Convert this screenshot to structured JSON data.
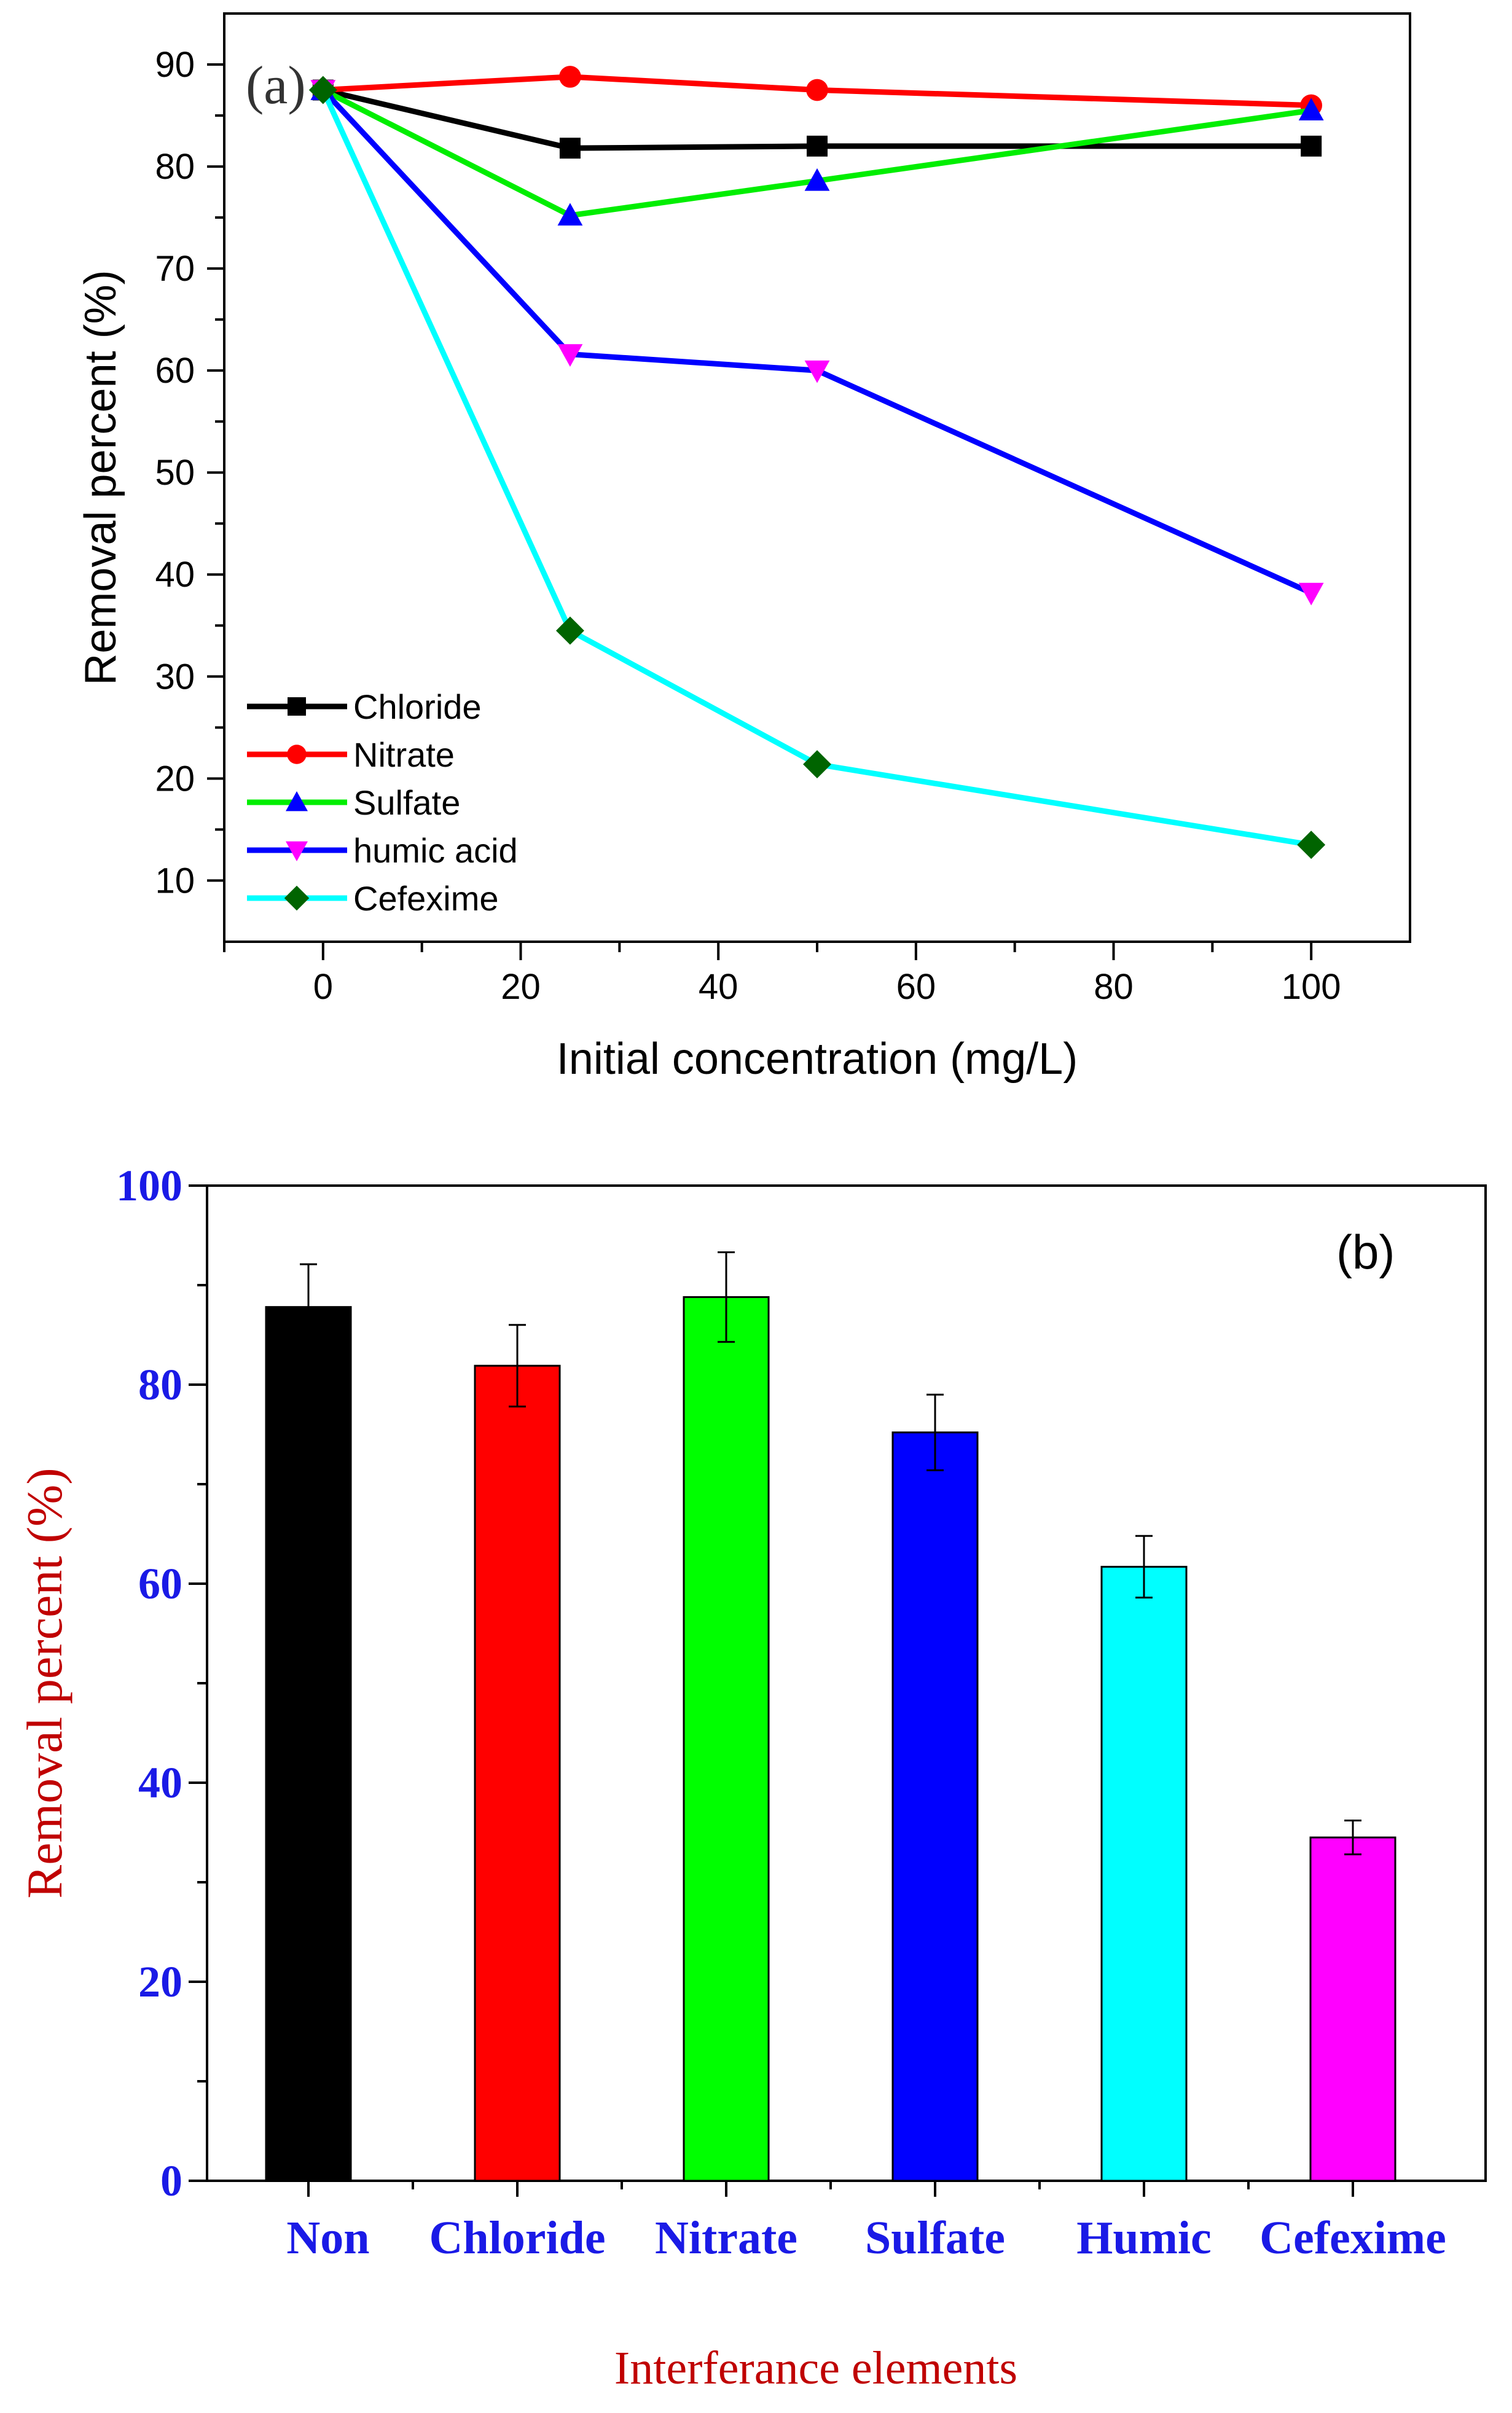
{
  "chart_data": [
    {
      "type": "line",
      "panel_label": "(a)",
      "xlabel": "Initial concentration (mg/L)",
      "ylabel": "Removal percent (%)",
      "xlim": [
        -10,
        110
      ],
      "ylim": [
        4,
        95
      ],
      "xticks": [
        0,
        20,
        40,
        60,
        80,
        100
      ],
      "yticks": [
        10,
        20,
        30,
        40,
        50,
        60,
        70,
        80,
        90
      ],
      "x": [
        0,
        25,
        50,
        100
      ],
      "legend_position": "bottom-left",
      "grid": false,
      "series": [
        {
          "name": "Chloride",
          "values": [
            87.5,
            81.8,
            82.0,
            82.0
          ],
          "line_color": "#000000",
          "marker": "square",
          "marker_color": "#000000"
        },
        {
          "name": "Nitrate",
          "values": [
            87.5,
            88.8,
            87.5,
            86.0
          ],
          "line_color": "#ff0000",
          "marker": "circle",
          "marker_color": "#ff0000"
        },
        {
          "name": "Sulfate",
          "values": [
            87.5,
            75.2,
            78.6,
            85.5
          ],
          "line_color": "#00ee00",
          "marker": "triangle-up",
          "marker_color": "#0000ff"
        },
        {
          "name": "humic acid",
          "values": [
            87.5,
            61.6,
            60.0,
            38.2
          ],
          "line_color": "#0000ff",
          "marker": "triangle-down",
          "marker_color": "#ff00ff"
        },
        {
          "name": "Cefexime",
          "values": [
            87.5,
            34.5,
            21.4,
            13.5
          ],
          "line_color": "#00ffff",
          "marker": "diamond",
          "marker_color": "#006400"
        }
      ]
    },
    {
      "type": "bar",
      "panel_label": "(b)",
      "xlabel": "Interferance elements",
      "ylabel": "Removal percent (%)",
      "ylim": [
        0,
        100
      ],
      "yticks": [
        0,
        20,
        40,
        60,
        80,
        100
      ],
      "categories": [
        "Non",
        "Chloride",
        "Nitrate",
        "Sulfate",
        "Humic",
        "Cefexime"
      ],
      "values": [
        87.8,
        81.9,
        88.8,
        75.2,
        61.7,
        34.5
      ],
      "errors": [
        4.3,
        4.1,
        4.5,
        3.8,
        3.1,
        1.7
      ],
      "colors": [
        "#000000",
        "#ff0000",
        "#00ff00",
        "#0000ff",
        "#00ffff",
        "#ff00ff"
      ],
      "grid": false
    }
  ]
}
